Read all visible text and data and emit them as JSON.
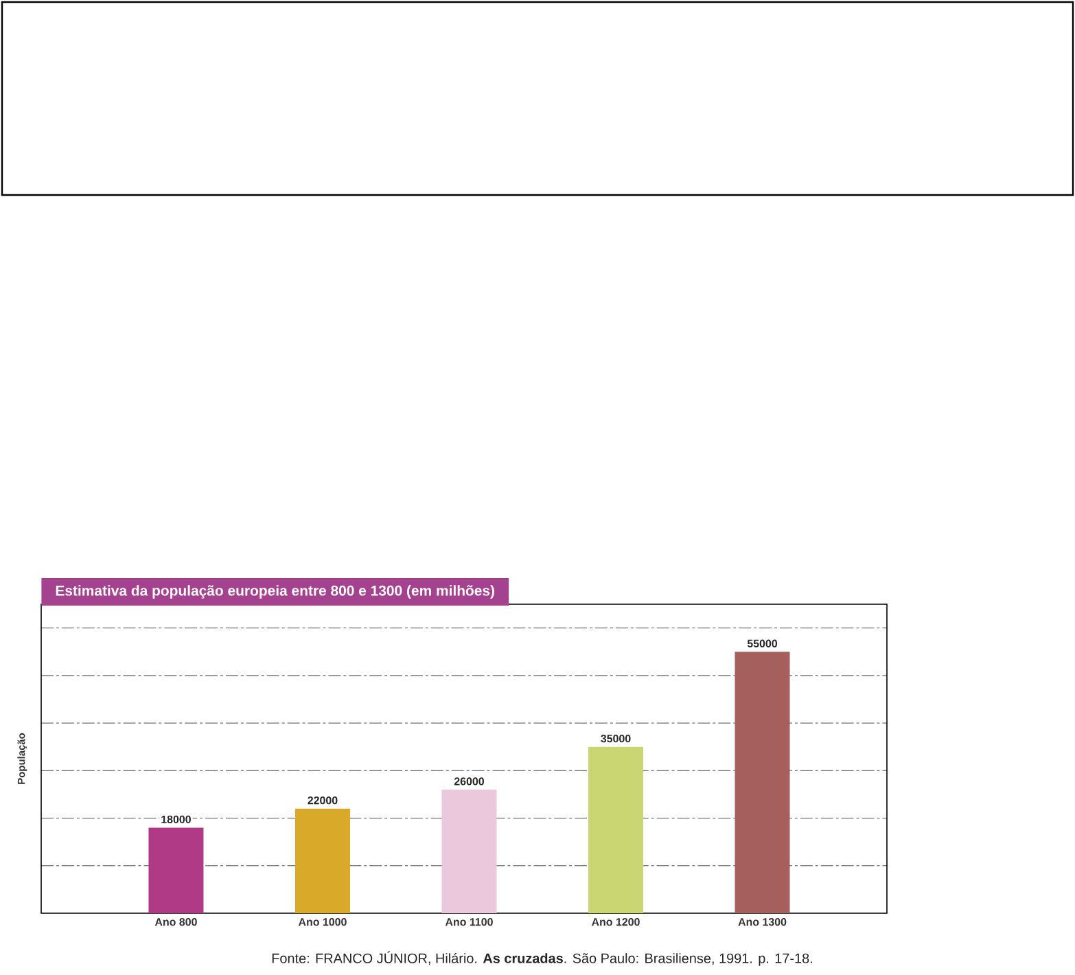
{
  "chart_data": {
    "type": "bar",
    "title": "Estimativa da população europeia entre 800 e 1300 (em milhões)",
    "ylabel": "População",
    "categories": [
      "Ano 800",
      "Ano 1000",
      "Ano 1100",
      "Ano 1200",
      "Ano 1300"
    ],
    "values": [
      18000,
      22000,
      26000,
      35000,
      55000
    ],
    "colors": [
      "#b03a86",
      "#d9aa2a",
      "#ecc8dd",
      "#c9d672",
      "#a5605e"
    ],
    "data_labels": true,
    "ylim": [
      0,
      65000
    ],
    "yticks": [
      {
        "value": 10000,
        "label": null
      },
      {
        "value": 20000,
        "label": null
      },
      {
        "value": 30000,
        "label": null
      },
      {
        "value": 40000,
        "label": null
      },
      {
        "value": 50000,
        "label": null
      },
      {
        "value": 60000,
        "label": null
      }
    ],
    "grid": "y",
    "tick_labels": "x",
    "annotations": [
      "Fonte: FRANCO JÚNIOR, Hilário. **As cruzadas**. São Paulo: Brasiliense, 1991. p. 17-18."
    ]
  }
}
